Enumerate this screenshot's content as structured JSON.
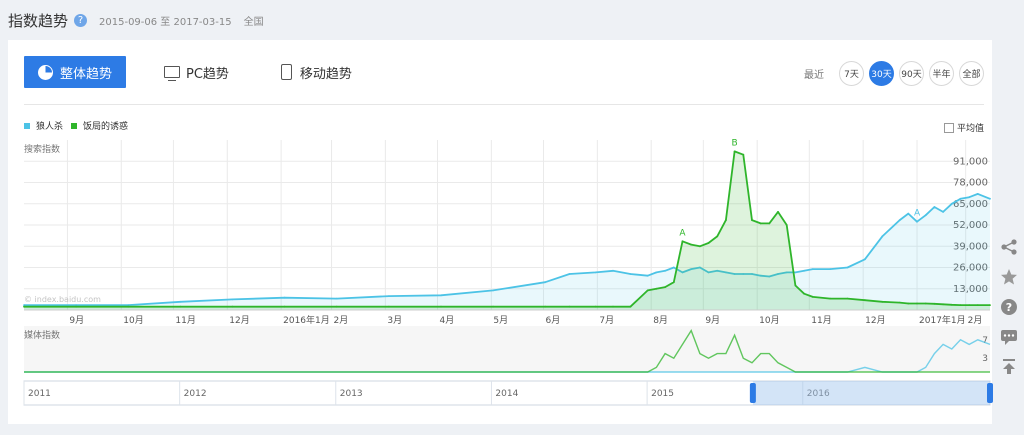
{
  "header": {
    "title": "指数趋势",
    "help_icon": "question-icon",
    "date_range": "2015-09-06 至 2017-03-15",
    "region": "全国"
  },
  "tabs": [
    {
      "label": "整体趋势",
      "icon": "pie-chart-icon",
      "active": true
    },
    {
      "label": "PC趋势",
      "icon": "monitor-icon"
    },
    {
      "label": "移动趋势",
      "icon": "mobile-icon"
    }
  ],
  "period": {
    "label": "最近",
    "options": [
      "7天",
      "30天",
      "90天",
      "半年",
      "全部"
    ],
    "selected": "30天"
  },
  "average_label": "平均值",
  "colors": {
    "accent": "#2d7be5",
    "series1": "#4cc3e6",
    "series2": "#2fb52b"
  },
  "side_icons": [
    "share-icon",
    "star-icon",
    "help-icon",
    "comment-icon",
    "back-to-top-icon"
  ],
  "chart_data": {
    "type": "area",
    "ylabel": "搜索指数",
    "yticks": [
      "91,000",
      "78,000",
      "65,000",
      "52,000",
      "39,000",
      "26,000",
      "13,000"
    ],
    "ylim": [
      0,
      104000
    ],
    "watermark": "© index.baidu.com",
    "x_tick_labels": [
      "9月",
      "10月",
      "11月",
      "12月",
      "2016年1月",
      "2月",
      "3月",
      "4月",
      "5月",
      "6月",
      "7月",
      "8月",
      "9月",
      "10月",
      "11月",
      "12月",
      "2017年1月",
      "2月"
    ],
    "x": [
      "2015-09-06",
      "2015-10-06",
      "2015-11-05",
      "2015-12-05",
      "2016-01-04",
      "2016-02-03",
      "2016-03-04",
      "2016-04-03",
      "2016-05-03",
      "2016-06-02",
      "2016-07-02",
      "2016-07-16",
      "2016-07-31",
      "2016-08-10",
      "2016-08-20",
      "2016-08-30",
      "2016-09-04",
      "2016-09-09",
      "2016-09-14",
      "2016-09-19",
      "2016-09-24",
      "2016-09-29",
      "2016-10-04",
      "2016-10-09",
      "2016-10-14",
      "2016-10-19",
      "2016-10-24",
      "2016-10-29",
      "2016-11-03",
      "2016-11-08",
      "2016-11-13",
      "2016-11-18",
      "2016-11-23",
      "2016-11-28",
      "2016-12-03",
      "2016-12-13",
      "2016-12-23",
      "2017-01-02",
      "2017-01-12",
      "2017-01-22",
      "2017-01-27",
      "2017-02-01",
      "2017-02-06",
      "2017-02-11",
      "2017-02-16",
      "2017-02-21",
      "2017-02-26",
      "2017-03-03",
      "2017-03-08",
      "2017-03-15"
    ],
    "series": [
      {
        "name": "狼人杀",
        "values": [
          3000,
          3000,
          3000,
          5000,
          6500,
          7500,
          7000,
          8500,
          9000,
          12000,
          17000,
          22000,
          23000,
          24000,
          22000,
          21000,
          23000,
          24000,
          26000,
          23000,
          25000,
          26000,
          23000,
          24000,
          23000,
          22000,
          22000,
          22000,
          21000,
          20500,
          22000,
          23000,
          23000,
          24000,
          25000,
          25000,
          26000,
          31000,
          45000,
          55000,
          59000,
          54000,
          58000,
          63000,
          60000,
          65000,
          68000,
          69000,
          71000,
          68000
        ]
      },
      {
        "name": "饭局的诱惑",
        "values": [
          2000,
          2000,
          2000,
          2000,
          2000,
          2000,
          2000,
          2000,
          2000,
          2000,
          2000,
          2000,
          2000,
          2000,
          2000,
          12000,
          13000,
          14000,
          17000,
          42000,
          40000,
          39000,
          41000,
          45000,
          55000,
          97000,
          95000,
          55000,
          53000,
          53000,
          60000,
          52000,
          15000,
          10000,
          8000,
          7000,
          7000,
          6000,
          5000,
          4500,
          4000,
          4000,
          4000,
          3800,
          3500,
          3200,
          3000,
          3000,
          3000,
          3000
        ]
      }
    ],
    "annotations": [
      {
        "series": "狼人杀",
        "x": "2017-02-01",
        "label": "A"
      },
      {
        "series": "饭局的诱惑",
        "x": "2016-09-19",
        "label": "A"
      },
      {
        "series": "饭局的诱惑",
        "x": "2016-10-19",
        "label": "B"
      }
    ],
    "media_chart": {
      "ylabel": "媒体指数",
      "yticks": [
        "7",
        "3"
      ],
      "series": [
        {
          "name": "狼人杀",
          "values": [
            0,
            0,
            0,
            0,
            0,
            0,
            0,
            0,
            0,
            0,
            0,
            0,
            0,
            0,
            0,
            0,
            0,
            0,
            0,
            0,
            0,
            0,
            0,
            0,
            0,
            0,
            0,
            0,
            0,
            0,
            0,
            0,
            0,
            0,
            0,
            0,
            0,
            1,
            0,
            0,
            0,
            0,
            1,
            4,
            6,
            5,
            7,
            6,
            7,
            6
          ]
        },
        {
          "name": "饭局的诱惑",
          "values": [
            0,
            0,
            0,
            0,
            0,
            0,
            0,
            0,
            0,
            0,
            0,
            0,
            0,
            0,
            0,
            0,
            1,
            4,
            3,
            6,
            9,
            4,
            3,
            4,
            4,
            8,
            3,
            2,
            4,
            4,
            2,
            1,
            0,
            0,
            0,
            0,
            0,
            0,
            0,
            0,
            0,
            0,
            0,
            0,
            0,
            0,
            0,
            0,
            0,
            0
          ]
        }
      ]
    },
    "overview_axis": {
      "labels": [
        "2011",
        "2012",
        "2013",
        "2014",
        "2015",
        "2016"
      ],
      "selected_range": [
        "2015-09-06",
        "2017-03-15"
      ]
    }
  }
}
